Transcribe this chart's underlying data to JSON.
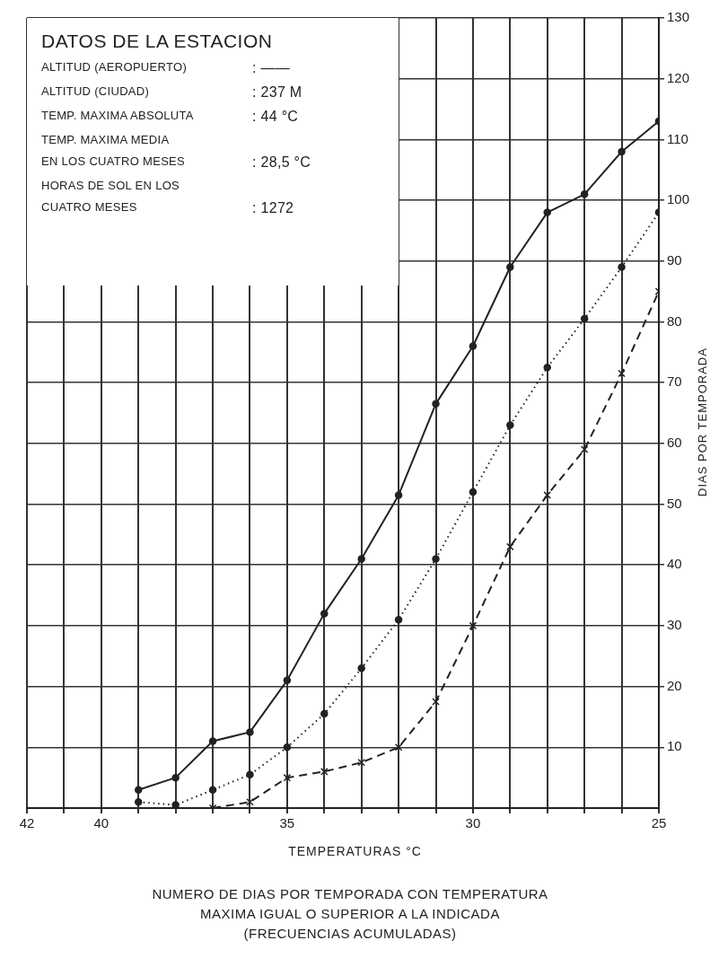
{
  "chart_data": {
    "type": "line",
    "title": "NUMERO DE DIAS POR TEMPORADA CON TEMPERATURA MAXIMA IGUAL O SUPERIOR A LA INDICADA",
    "subtitle": "(FRECUENCIAS ACUMULADAS)",
    "xlabel": "TEMPERATURAS °C",
    "ylabel": "DIAS POR TEMPORADA",
    "annotations": [
      "DATOS DE LA ESTACION",
      "ALTITUD (AEROPUERTO) : ——",
      "ALTITUD (CIUDAD) : 237 M",
      "TEMP. MAXIMA ABSOLUTA : 44 °C",
      "TEMP. MAXIMA MEDIA",
      "EN LOS CUATRO MESES : 28,5 °C",
      "HORAS DE SOL EN LOS",
      "CUATRO MESES : 1272"
    ],
    "xlim": [
      42,
      25
    ],
    "xticks": [
      42,
      {
        "value": 41,
        "label": null
      },
      40,
      {
        "value": 39,
        "label": null
      },
      {
        "value": 38,
        "label": null
      },
      {
        "value": 37,
        "label": null
      },
      {
        "value": 36,
        "label": null
      },
      35,
      {
        "value": 34,
        "label": null
      },
      {
        "value": 33,
        "label": null
      },
      {
        "value": 32,
        "label": null
      },
      {
        "value": 31,
        "label": null
      },
      30,
      {
        "value": 29,
        "label": null
      },
      {
        "value": 28,
        "label": null
      },
      {
        "value": 27,
        "label": null
      },
      {
        "value": 26,
        "label": null
      },
      25
    ],
    "ylim": [
      0,
      130
    ],
    "yticks": [
      10,
      20,
      30,
      40,
      50,
      60,
      70,
      80,
      90,
      100,
      110,
      120,
      130
    ],
    "grid": true,
    "series": [
      {
        "color": "#222222",
        "marker": "circle",
        "line_style": "solid",
        "x": [
          39,
          38,
          37,
          36,
          35,
          34,
          33,
          32,
          31,
          30,
          29,
          28,
          27,
          26,
          25
        ],
        "values": [
          3,
          5,
          11,
          12.5,
          21,
          32,
          41,
          51.5,
          66.5,
          76,
          89,
          98,
          101,
          108,
          113
        ]
      },
      {
        "color": "#222222",
        "marker": "circle",
        "line_style": "dotted",
        "x": [
          39,
          38,
          37,
          36,
          35,
          34,
          33,
          32,
          31,
          30,
          29,
          28,
          27,
          26,
          25
        ],
        "values": [
          1,
          0.5,
          3,
          5.5,
          10,
          15.5,
          23,
          31,
          41,
          52,
          63,
          72.5,
          80.5,
          89,
          98
        ]
      },
      {
        "color": "#222222",
        "marker": "cross",
        "line_style": "dashed",
        "x": [
          37,
          36,
          35,
          34,
          33,
          32,
          31,
          30,
          29,
          28,
          27,
          26,
          25
        ],
        "values": [
          0,
          1,
          5,
          6,
          7.5,
          10,
          17.5,
          30,
          43,
          51.5,
          59,
          71.5,
          85
        ]
      }
    ]
  }
}
